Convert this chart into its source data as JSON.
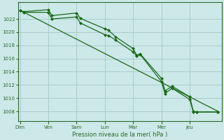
{
  "background_color": "#cce8e8",
  "grid_color": "#aacccc",
  "line_color": "#1a6a1a",
  "marker_color": "#1a6a1a",
  "xlabel": "Pression niveau de la mer( hPa )",
  "ylim": [
    1006.5,
    1024.5
  ],
  "yticks": [
    1008,
    1010,
    1012,
    1014,
    1016,
    1018,
    1020,
    1022
  ],
  "day_labels": [
    "Dim",
    "Ven",
    "Sam",
    "Lun",
    "Mar",
    "Mer",
    "Jeu"
  ],
  "day_positions": [
    0,
    4,
    8,
    12,
    16,
    20,
    24
  ],
  "xlim": [
    -0.3,
    28.5
  ],
  "series1_x": [
    0,
    0.5,
    4,
    4.5,
    8,
    8.5,
    12,
    12.5,
    13.5,
    16,
    16.5,
    17,
    20,
    20.5,
    21.5,
    24,
    24.5,
    25,
    28
  ],
  "series1_y": [
    1023.3,
    1023.1,
    1023.4,
    1022.5,
    1022.9,
    1022.1,
    1020.5,
    1020.3,
    1019.3,
    1017.5,
    1016.5,
    1016.7,
    1013.0,
    1011.1,
    1011.8,
    1010.2,
    1008.0,
    1007.9,
    1007.9
  ],
  "series2_x": [
    0,
    0.5,
    4,
    4.5,
    8,
    8.5,
    12,
    12.5,
    13.5,
    16,
    16.5,
    17,
    20,
    20.5,
    21.5,
    24,
    24.5,
    25,
    28
  ],
  "series2_y": [
    1023.3,
    1023.0,
    1023.0,
    1022.0,
    1022.3,
    1021.4,
    1019.6,
    1019.5,
    1018.8,
    1017.0,
    1016.4,
    1016.6,
    1012.5,
    1010.7,
    1011.5,
    1009.8,
    1007.9,
    1007.9,
    1007.9
  ],
  "trend_x": [
    0,
    28
  ],
  "trend_y": [
    1023.3,
    1008.0
  ]
}
